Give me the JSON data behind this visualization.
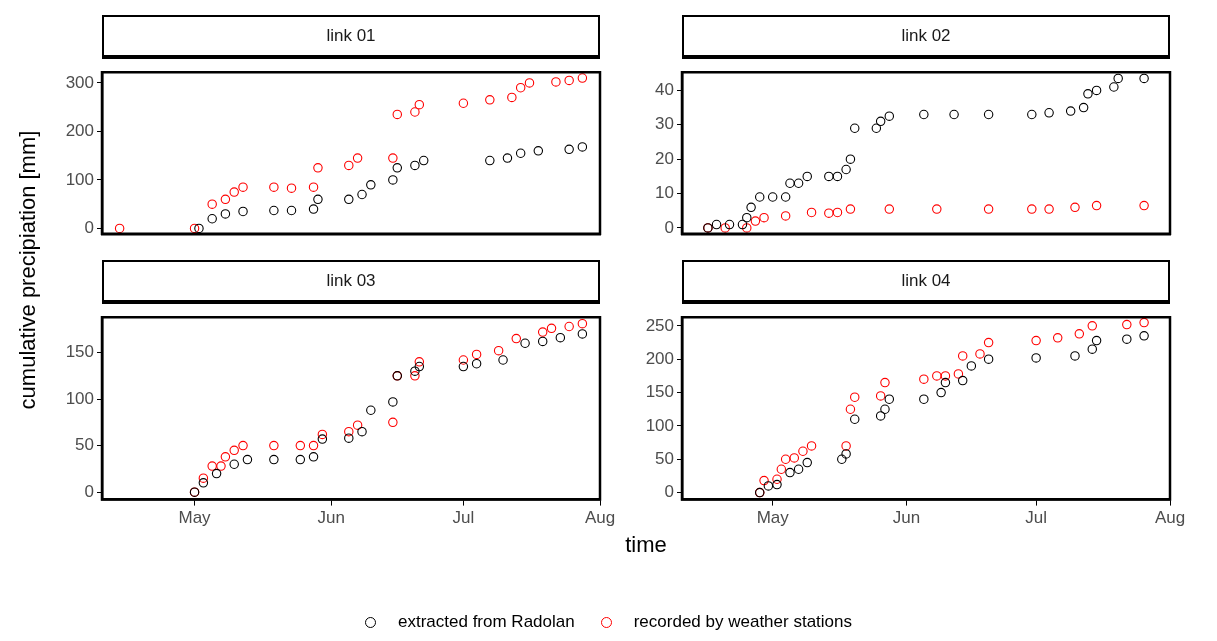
{
  "chart_data": [
    {
      "type": "scatter",
      "title": "link 01",
      "ylabel": "cumulative precipiation [mm]",
      "marker": "circle",
      "grid": false,
      "tick_labels": "y",
      "xlim": [
        "--04-10",
        "--08-01"
      ],
      "xticks": [
        {
          "value": "--05-01",
          "label": "May"
        },
        {
          "value": "--06-01",
          "label": "Jun"
        },
        {
          "value": "--07-01",
          "label": "Jul"
        },
        {
          "value": "--08-01",
          "label": "Aug"
        }
      ],
      "ylim": [
        -11,
        322
      ],
      "yticks": [
        0,
        100,
        200,
        300
      ],
      "series": [
        {
          "color": "#000000",
          "x": [
            "--05-02",
            "--05-05",
            "--05-08",
            "--05-12",
            "--05-19",
            "--05-23",
            "--05-28",
            "--05-29",
            "--06-05",
            "--06-08",
            "--06-10",
            "--06-15",
            "--06-16",
            "--06-20",
            "--06-22",
            "--07-07",
            "--07-11",
            "--07-14",
            "--07-18",
            "--07-25",
            "--07-28"
          ],
          "values": [
            0,
            20,
            30,
            35,
            37,
            37,
            40,
            60,
            60,
            70,
            90,
            100,
            125,
            130,
            140,
            140,
            145,
            155,
            160,
            163,
            168
          ]
        },
        {
          "color": "#ff0000",
          "x": [
            "--04-14",
            "--05-01",
            "--05-05",
            "--05-08",
            "--05-10",
            "--05-12",
            "--05-19",
            "--05-23",
            "--05-28",
            "--05-29",
            "--06-05",
            "--06-07",
            "--06-15",
            "--06-16",
            "--06-20",
            "--06-21",
            "--07-01",
            "--07-07",
            "--07-12",
            "--07-14",
            "--07-16",
            "--07-22",
            "--07-25",
            "--07-28"
          ],
          "values": [
            0,
            0,
            50,
            60,
            75,
            85,
            85,
            83,
            85,
            125,
            130,
            145,
            145,
            235,
            240,
            255,
            258,
            265,
            270,
            290,
            300,
            302,
            305,
            310
          ]
        }
      ]
    },
    {
      "type": "scatter",
      "title": "link 02",
      "marker": "circle",
      "grid": false,
      "tick_labels": "y",
      "xlim": [
        "--04-10",
        "--08-01"
      ],
      "xticks": [
        {
          "value": "--05-01",
          "label": "May"
        },
        {
          "value": "--06-01",
          "label": "Jun"
        },
        {
          "value": "--07-01",
          "label": "Jul"
        },
        {
          "value": "--08-01",
          "label": "Aug"
        }
      ],
      "ylim": [
        -1.7,
        45.3
      ],
      "yticks": [
        0,
        10,
        20,
        30,
        40
      ],
      "series": [
        {
          "color": "#000000",
          "x": [
            "--04-16",
            "--04-18",
            "--04-21",
            "--04-24",
            "--04-25",
            "--04-26",
            "--04-28",
            "--05-01",
            "--05-04",
            "--05-05",
            "--05-07",
            "--05-09",
            "--05-14",
            "--05-16",
            "--05-18",
            "--05-19",
            "--05-20",
            "--05-25",
            "--05-26",
            "--05-28",
            "--06-05",
            "--06-12",
            "--06-20",
            "--06-30",
            "--07-04",
            "--07-09",
            "--07-12",
            "--07-13",
            "--07-15",
            "--07-19",
            "--07-20",
            "--07-26"
          ],
          "values": [
            0,
            1,
            1,
            1,
            3,
            6,
            9,
            9,
            9,
            13,
            13,
            15,
            15,
            15,
            17,
            20,
            29,
            29,
            31,
            32.5,
            33,
            33,
            33,
            33,
            33.5,
            34,
            35,
            39,
            40,
            41,
            43.5,
            43.5
          ]
        },
        {
          "color": "#ff0000",
          "x": [
            "--04-16",
            "--04-20",
            "--04-25",
            "--04-27",
            "--04-29",
            "--05-04",
            "--05-10",
            "--05-14",
            "--05-16",
            "--05-19",
            "--05-28",
            "--06-08",
            "--06-20",
            "--06-30",
            "--07-04",
            "--07-10",
            "--07-15",
            "--07-26"
          ],
          "values": [
            0,
            0,
            0,
            2,
            3,
            3.5,
            4.5,
            4.3,
            4.5,
            5.5,
            5.5,
            5.5,
            5.5,
            5.5,
            5.5,
            6,
            6.5,
            6.5
          ]
        }
      ]
    },
    {
      "type": "scatter",
      "title": "link 03",
      "marker": "circle",
      "grid": false,
      "xlim": [
        "--04-10",
        "--08-01"
      ],
      "xticks": [
        {
          "value": "--05-01",
          "label": "May"
        },
        {
          "value": "--06-01",
          "label": "Jun"
        },
        {
          "value": "--07-01",
          "label": "Jul"
        },
        {
          "value": "--08-01",
          "label": "Aug"
        }
      ],
      "ylim": [
        -8,
        188
      ],
      "yticks": [
        0,
        50,
        100,
        150
      ],
      "series": [
        {
          "color": "#000000",
          "x": [
            "--05-01",
            "--05-03",
            "--05-06",
            "--05-10",
            "--05-13",
            "--05-19",
            "--05-25",
            "--05-28",
            "--05-30",
            "--06-05",
            "--06-08",
            "--06-10",
            "--06-15",
            "--06-16",
            "--06-20",
            "--06-21",
            "--07-01",
            "--07-04",
            "--07-10",
            "--07-15",
            "--07-19",
            "--07-23",
            "--07-28"
          ],
          "values": [
            0,
            10,
            20,
            30,
            35,
            35,
            35,
            38,
            57,
            58,
            65,
            88,
            97,
            125,
            130,
            135,
            135,
            138,
            142,
            160,
            162,
            166,
            170
          ]
        },
        {
          "color": "#ff0000",
          "x": [
            "--05-01",
            "--05-03",
            "--05-05",
            "--05-07",
            "--05-08",
            "--05-10",
            "--05-12",
            "--05-19",
            "--05-25",
            "--05-28",
            "--05-30",
            "--06-05",
            "--06-07",
            "--06-15",
            "--06-16",
            "--06-20",
            "--06-21",
            "--07-01",
            "--07-04",
            "--07-09",
            "--07-13",
            "--07-19",
            "--07-21",
            "--07-25",
            "--07-28"
          ],
          "values": [
            0,
            15,
            28,
            28,
            38,
            45,
            50,
            50,
            50,
            50,
            62,
            65,
            72,
            75,
            125,
            125,
            140,
            142,
            148,
            152,
            165,
            172,
            176,
            178,
            181
          ]
        }
      ]
    },
    {
      "type": "scatter",
      "title": "link 04",
      "xlabel": "time",
      "marker": "circle",
      "grid": false,
      "legend": "bottom",
      "xlim": [
        "--04-10",
        "--08-01"
      ],
      "xticks": [
        {
          "value": "--05-01",
          "label": "May"
        },
        {
          "value": "--06-01",
          "label": "Jun"
        },
        {
          "value": "--07-01",
          "label": "Jul"
        },
        {
          "value": "--08-01",
          "label": "Aug"
        }
      ],
      "ylim": [
        -10.5,
        263
      ],
      "yticks": [
        0,
        50,
        100,
        150,
        200,
        250
      ],
      "series": [
        {
          "name": "extracted from Radolan",
          "color": "#000000",
          "x": [
            "--04-28",
            "--04-30",
            "--05-02",
            "--05-05",
            "--05-07",
            "--05-09",
            "--05-17",
            "--05-18",
            "--05-20",
            "--05-26",
            "--05-27",
            "--05-28",
            "--06-05",
            "--06-09",
            "--06-10",
            "--06-14",
            "--06-16",
            "--06-20",
            "--07-01",
            "--07-10",
            "--07-14",
            "--07-15",
            "--07-22",
            "--07-26"
          ],
          "values": [
            0,
            10,
            12,
            30,
            35,
            45,
            50,
            58,
            110,
            115,
            125,
            140,
            140,
            150,
            165,
            168,
            190,
            200,
            202,
            205,
            215,
            228,
            230,
            235
          ]
        },
        {
          "name": "recorded by weather stations",
          "color": "#ff0000",
          "x": [
            "--04-28",
            "--04-29",
            "--05-02",
            "--05-03",
            "--05-04",
            "--05-06",
            "--05-08",
            "--05-10",
            "--05-18",
            "--05-19",
            "--05-20",
            "--05-26",
            "--05-27",
            "--06-05",
            "--06-08",
            "--06-10",
            "--06-13",
            "--06-14",
            "--06-18",
            "--06-20",
            "--07-01",
            "--07-06",
            "--07-11",
            "--07-14",
            "--07-22",
            "--07-26"
          ],
          "values": [
            0,
            18,
            20,
            35,
            50,
            52,
            62,
            70,
            70,
            125,
            143,
            145,
            165,
            170,
            175,
            175,
            178,
            205,
            208,
            225,
            228,
            232,
            238,
            250,
            252,
            255
          ]
        }
      ]
    }
  ]
}
